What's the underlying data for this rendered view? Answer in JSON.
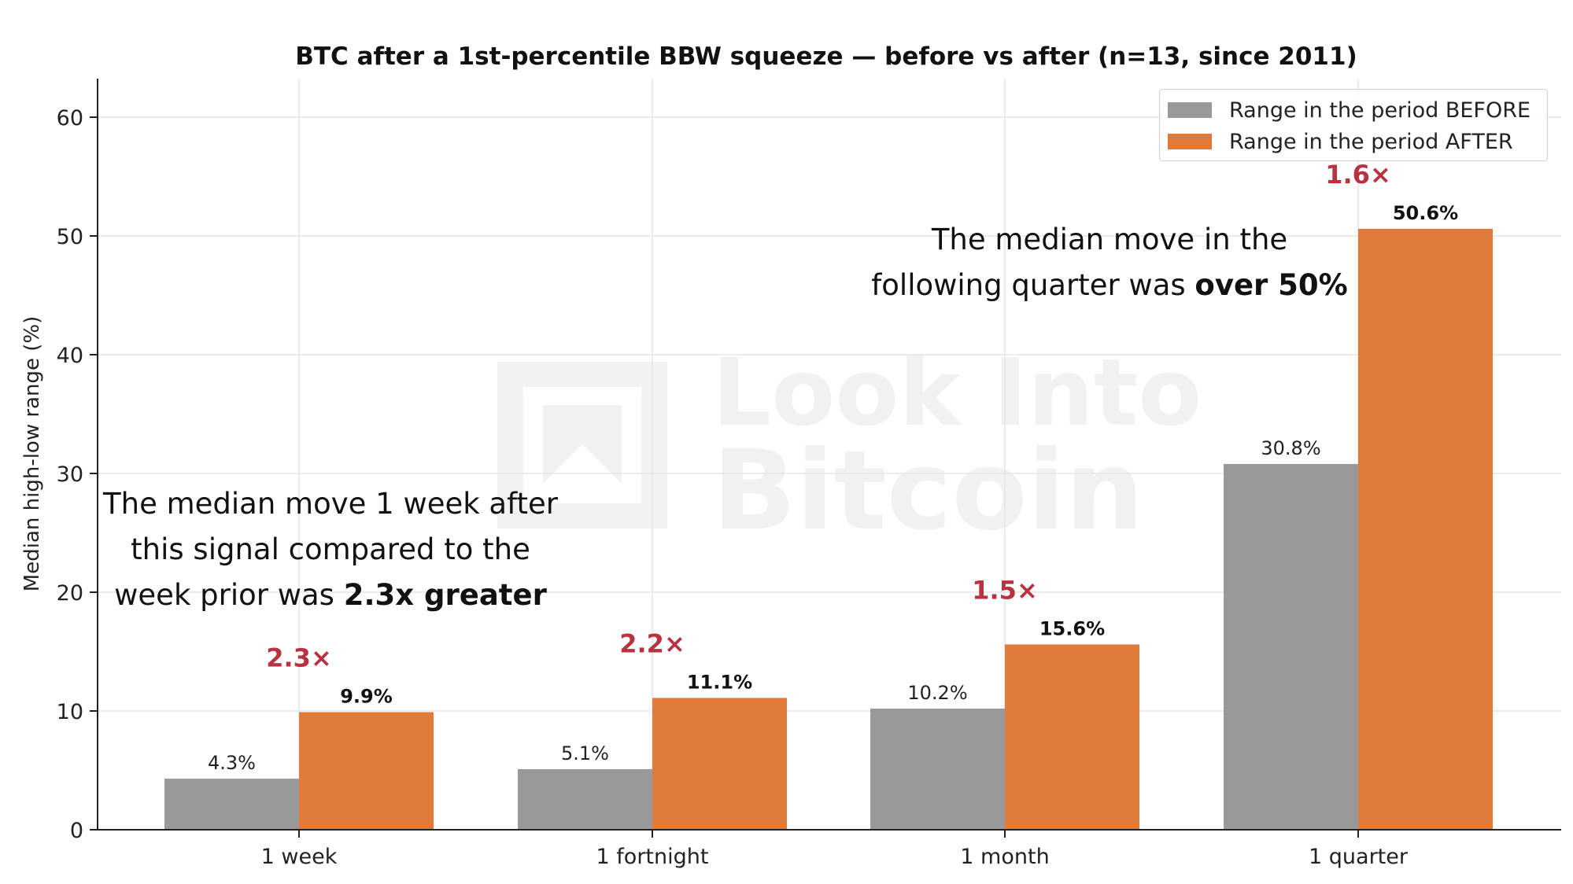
{
  "chart_data": {
    "type": "bar",
    "title": "BTC after a 1st-percentile BBW squeeze — before vs after (n=13, since 2011)",
    "xlabel": "",
    "ylabel": "Median high-low range (%)",
    "ylim": [
      0,
      63
    ],
    "yticks": [
      "0",
      "10",
      "20",
      "30",
      "40",
      "50",
      "60"
    ],
    "categories": [
      "1 week",
      "1 fortnight",
      "1 month",
      "1 quarter"
    ],
    "series": [
      {
        "name": "Range in the period BEFORE",
        "color": "#999999",
        "values": [
          4.3,
          5.1,
          10.2,
          30.8
        ],
        "labels": [
          "4.3%",
          "5.1%",
          "10.2%",
          "30.8%"
        ]
      },
      {
        "name": "Range in the period AFTER",
        "color": "#e07b39",
        "values": [
          9.9,
          11.1,
          15.6,
          50.6
        ],
        "labels": [
          "9.9%",
          "11.1%",
          "15.6%",
          "50.6%"
        ]
      }
    ],
    "ratios": [
      "2.3×",
      "2.2×",
      "1.5×",
      "1.6×"
    ],
    "ratio_color": "#b83240",
    "grid": true,
    "legend_position": "top-right"
  },
  "annotations": {
    "week_line1": "The median move 1 week after",
    "week_line2": "this signal compared to the",
    "week_line3_prefix": "week prior was ",
    "week_line3_bold": "2.3x greater",
    "quarter_line1": "The median move in the",
    "quarter_line2_prefix": "following quarter was ",
    "quarter_line2_bold": "over 50%"
  },
  "watermark": {
    "line1": "Look Into",
    "line2": "Bitcoin"
  }
}
